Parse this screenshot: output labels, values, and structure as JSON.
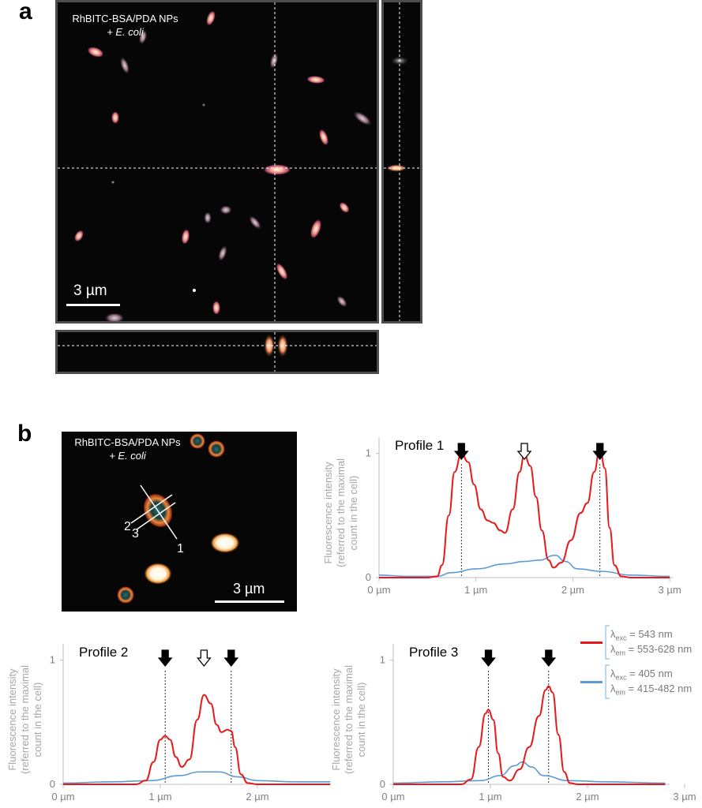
{
  "figure": {
    "panel_a_label": "a",
    "panel_b_label": "b"
  },
  "panel_a": {
    "title_line1": "RhBITC-BSA/PDA NPs",
    "title_line2": "+ E. coli",
    "scalebar_label": "3 µm"
  },
  "panel_b_image": {
    "title_line1": "RhBITC-BSA/PDA NPs",
    "title_line2": "+ E. coli",
    "scalebar_label": "3 µm",
    "line_labels": [
      "1",
      "2",
      "3"
    ]
  },
  "legend": {
    "items": [
      {
        "exc_symbol": "λ",
        "exc_sub": "exc",
        "exc_value": " = 543 nm",
        "em_symbol": "λ",
        "em_sub": "em",
        "em_value": " = 553-628 nm",
        "color": "#e8191b"
      },
      {
        "exc_symbol": "λ",
        "exc_sub": "exc",
        "exc_value": " = 405 nm",
        "em_symbol": "λ",
        "em_sub": "em",
        "em_value": " = 415-482 nm",
        "color": "#5b9bd5"
      }
    ]
  },
  "colors": {
    "red_series": "#e8191b",
    "blue_series": "#5b9bd5",
    "axis": "#bfbfbf",
    "tick_text": "#7f7f7f"
  },
  "chart_data": [
    {
      "type": "line",
      "title": "Profile 1",
      "ylabel": "Fluorescence intensity (referred to the maximal count in the cell)",
      "ylabel_lines": [
        "Fluorescence intensity",
        "(referred to the maximal",
        "count in the cell)"
      ],
      "xlim": [
        0,
        3
      ],
      "ylim": [
        0,
        1.08
      ],
      "x_ticks": [
        "0 µm",
        "1 µm",
        "2 µm",
        "3 µm"
      ],
      "y_ticks": [
        "0",
        "1"
      ],
      "filled_arrows_x": [
        0.85,
        2.28
      ],
      "open_arrows_x": [
        1.5
      ],
      "series": [
        {
          "color": "#e8191b",
          "points": [
            [
              0,
              0
            ],
            [
              0.5,
              0
            ],
            [
              0.6,
              0.01
            ],
            [
              0.65,
              0.1
            ],
            [
              0.72,
              0.5
            ],
            [
              0.78,
              0.85
            ],
            [
              0.85,
              1.0
            ],
            [
              0.92,
              0.93
            ],
            [
              0.98,
              0.75
            ],
            [
              1.05,
              0.55
            ],
            [
              1.12,
              0.46
            ],
            [
              1.18,
              0.44
            ],
            [
              1.25,
              0.38
            ],
            [
              1.3,
              0.36
            ],
            [
              1.38,
              0.55
            ],
            [
              1.45,
              0.85
            ],
            [
              1.5,
              0.99
            ],
            [
              1.56,
              0.9
            ],
            [
              1.62,
              0.65
            ],
            [
              1.68,
              0.38
            ],
            [
              1.75,
              0.14
            ],
            [
              1.8,
              0.08
            ],
            [
              1.88,
              0.12
            ],
            [
              1.98,
              0.3
            ],
            [
              2.08,
              0.52
            ],
            [
              2.15,
              0.6
            ],
            [
              2.22,
              0.85
            ],
            [
              2.28,
              1.05
            ],
            [
              2.33,
              0.88
            ],
            [
              2.38,
              0.4
            ],
            [
              2.43,
              0.1
            ],
            [
              2.5,
              0.01
            ],
            [
              2.6,
              0
            ],
            [
              3,
              0
            ]
          ]
        },
        {
          "color": "#5b9bd5",
          "points": [
            [
              0,
              0.02
            ],
            [
              0.3,
              0.01
            ],
            [
              0.6,
              0.01
            ],
            [
              0.75,
              0.04
            ],
            [
              1.0,
              0.07
            ],
            [
              1.3,
              0.11
            ],
            [
              1.5,
              0.13
            ],
            [
              1.65,
              0.14
            ],
            [
              1.82,
              0.18
            ],
            [
              1.92,
              0.13
            ],
            [
              2.05,
              0.07
            ],
            [
              2.3,
              0.05
            ],
            [
              2.6,
              0.02
            ],
            [
              3,
              0.01
            ]
          ]
        }
      ]
    },
    {
      "type": "line",
      "title": "Profile 2",
      "ylabel": "Fluorescence intensity (referred to the maximal count in the cell)",
      "ylabel_lines": [
        "Fluorescence intensity",
        "(referred to the maximal",
        "count in the cell)"
      ],
      "xlim": [
        0,
        2.75
      ],
      "ylim": [
        0,
        1.08
      ],
      "x_ticks": [
        "0 µm",
        "1 µm",
        "2 µm"
      ],
      "y_ticks": [
        "0",
        "1"
      ],
      "filled_arrows_x": [
        1.05,
        1.73
      ],
      "open_arrows_x": [
        1.45
      ],
      "series": [
        {
          "color": "#e8191b",
          "points": [
            [
              0,
              0
            ],
            [
              0.75,
              0
            ],
            [
              0.85,
              0.03
            ],
            [
              0.93,
              0.18
            ],
            [
              1.0,
              0.36
            ],
            [
              1.05,
              0.39
            ],
            [
              1.1,
              0.36
            ],
            [
              1.16,
              0.22
            ],
            [
              1.22,
              0.14
            ],
            [
              1.3,
              0.2
            ],
            [
              1.38,
              0.52
            ],
            [
              1.45,
              0.72
            ],
            [
              1.52,
              0.65
            ],
            [
              1.58,
              0.48
            ],
            [
              1.63,
              0.42
            ],
            [
              1.69,
              0.44
            ],
            [
              1.73,
              0.43
            ],
            [
              1.77,
              0.3
            ],
            [
              1.83,
              0.08
            ],
            [
              1.9,
              0.01
            ],
            [
              2.0,
              0
            ],
            [
              2.75,
              0
            ]
          ]
        },
        {
          "color": "#5b9bd5",
          "points": [
            [
              0,
              0.01
            ],
            [
              0.5,
              0.02
            ],
            [
              0.9,
              0.03
            ],
            [
              1.2,
              0.07
            ],
            [
              1.4,
              0.1
            ],
            [
              1.6,
              0.1
            ],
            [
              1.8,
              0.06
            ],
            [
              2.0,
              0.03
            ],
            [
              2.4,
              0.02
            ],
            [
              2.75,
              0.02
            ]
          ]
        }
      ]
    },
    {
      "type": "line",
      "title": "Profile 3",
      "ylabel": "Fluorescence intensity (referred to the maximal count in the cell)",
      "ylabel_lines": [
        "Fluorescence intensity",
        "(referred to the maximal",
        "count in the cell)"
      ],
      "xlim": [
        0,
        3.0
      ],
      "ylim": [
        0,
        1.08
      ],
      "x_ticks": [
        "0 µm",
        "1 µm",
        "2 µm",
        "3 µm"
      ],
      "y_ticks": [
        "0",
        "1"
      ],
      "filled_arrows_x": [
        0.98,
        1.6
      ],
      "open_arrows_x": [],
      "series": [
        {
          "color": "#e8191b",
          "points": [
            [
              0,
              0
            ],
            [
              0.7,
              0
            ],
            [
              0.8,
              0.04
            ],
            [
              0.88,
              0.3
            ],
            [
              0.95,
              0.57
            ],
            [
              0.98,
              0.6
            ],
            [
              1.03,
              0.52
            ],
            [
              1.08,
              0.25
            ],
            [
              1.13,
              0.06
            ],
            [
              1.2,
              0.03
            ],
            [
              1.3,
              0.12
            ],
            [
              1.4,
              0.3
            ],
            [
              1.5,
              0.55
            ],
            [
              1.57,
              0.76
            ],
            [
              1.6,
              0.79
            ],
            [
              1.64,
              0.74
            ],
            [
              1.7,
              0.4
            ],
            [
              1.76,
              0.1
            ],
            [
              1.82,
              0.01
            ],
            [
              1.9,
              0
            ],
            [
              2.8,
              0
            ]
          ]
        },
        {
          "color": "#5b9bd5",
          "points": [
            [
              0,
              0.01
            ],
            [
              0.5,
              0.02
            ],
            [
              0.9,
              0.03
            ],
            [
              1.1,
              0.07
            ],
            [
              1.25,
              0.15
            ],
            [
              1.33,
              0.18
            ],
            [
              1.42,
              0.14
            ],
            [
              1.55,
              0.07
            ],
            [
              1.8,
              0.03
            ],
            [
              2.2,
              0.02
            ],
            [
              2.8,
              0.01
            ]
          ]
        }
      ]
    }
  ]
}
